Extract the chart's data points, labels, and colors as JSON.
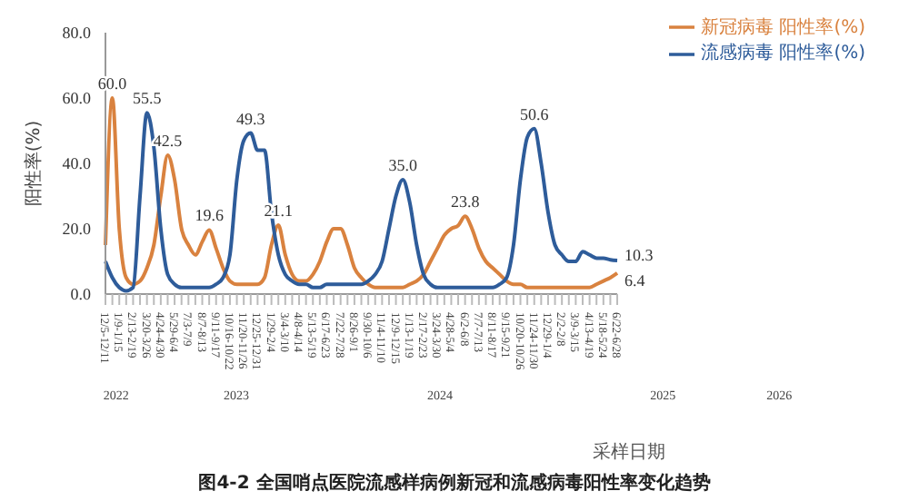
{
  "chart_data": {
    "type": "line",
    "title": "图4-2 全国哨点医院流感样病例新冠和流感病毒阳性率变化趋势",
    "xlabel": "采样日期",
    "ylabel": "阳性率(%)",
    "categories": [
      "12/5-12/11",
      null,
      "1/9-1/15",
      null,
      "2/13-2/19",
      null,
      "3/20-3/26",
      null,
      "4/24-4/30",
      null,
      "5/29-6/4",
      null,
      "7/3-7/9",
      null,
      "8/7-8/13",
      null,
      "9/11-9/17",
      null,
      "10/16-10/22",
      null,
      "11/20-11/26",
      null,
      "12/25-12/31",
      null,
      "1/29-2/4",
      null,
      "3/4-3/10",
      null,
      "4/8-4/14",
      null,
      "5/13-5/19",
      null,
      "6/17-6/23",
      null,
      "7/22-7/28",
      null,
      "8/26-9/1",
      null,
      "9/30-10/6",
      null,
      "11/4-11/10",
      null,
      "12/9-12/15",
      null,
      "1/13-1/19",
      null,
      "2/17-2/23",
      null,
      "3/24-3/30",
      null,
      "4/28-5/4",
      null,
      "6/2-6/8",
      null,
      "7/7-7/13",
      null,
      "8/11-8/17",
      null,
      "9/15-9/21",
      null,
      "10/20-10/26",
      null,
      "11/24-11/30",
      null,
      "12/29-1/4",
      null,
      "2/2-2/8",
      null,
      "3/9-3/15",
      null,
      "4/13-4/19",
      null,
      "5/18-5/24",
      null,
      "6/22-6/28"
    ],
    "series": [
      {
        "name": "新冠病毒 阳性率(%)",
        "color": "#d9823f",
        "values": [
          15,
          60,
          20,
          5,
          3,
          4,
          8,
          15,
          30,
          42.5,
          35,
          20,
          15,
          12,
          16,
          19.6,
          14,
          8,
          4,
          3,
          3,
          3,
          3,
          5,
          15,
          21.1,
          12,
          6,
          4,
          4,
          6,
          10,
          16,
          20,
          20,
          15,
          8,
          5,
          3,
          2,
          2,
          2,
          2,
          2,
          3,
          4,
          6,
          10,
          14,
          18,
          20,
          21,
          23.8,
          20,
          14,
          10,
          8,
          6,
          4,
          3,
          3,
          2,
          2,
          2,
          2,
          2,
          2,
          2,
          2,
          2,
          2,
          3,
          4,
          5,
          6.4
        ],
        "value_labels": [
          null,
          "60.0",
          null,
          null,
          null,
          null,
          null,
          null,
          null,
          "42.5",
          null,
          null,
          null,
          null,
          null,
          "19.6",
          null,
          null,
          null,
          null,
          null,
          null,
          null,
          null,
          null,
          "21.1",
          null,
          null,
          null,
          null,
          null,
          null,
          null,
          null,
          null,
          null,
          null,
          null,
          null,
          null,
          null,
          null,
          null,
          null,
          null,
          null,
          null,
          null,
          null,
          null,
          null,
          null,
          "23.8",
          null,
          null,
          null,
          null,
          null,
          null,
          null,
          null,
          null,
          null,
          null,
          null,
          null,
          null,
          null,
          null,
          null,
          null,
          null,
          null,
          null,
          "6.4"
        ]
      },
      {
        "name": "流感病毒 阳性率(%)",
        "color": "#2e5c9a",
        "values": [
          10,
          5,
          2,
          1,
          2,
          30,
          55.5,
          45,
          20,
          6,
          3,
          2,
          2,
          2,
          2,
          2,
          3,
          5,
          12,
          35,
          47,
          49.3,
          44,
          44,
          25,
          12,
          6,
          4,
          3,
          3,
          2,
          2,
          3,
          3,
          3,
          3,
          3,
          3,
          4,
          6,
          10,
          20,
          30,
          35,
          28,
          15,
          6,
          3,
          2,
          2,
          2,
          2,
          2,
          2,
          2,
          2,
          2,
          3,
          5,
          15,
          35,
          48,
          50.6,
          40,
          25,
          15,
          12,
          10,
          10,
          13,
          12,
          11,
          11,
          10.5,
          10.3
        ],
        "value_labels": [
          null,
          null,
          null,
          null,
          null,
          null,
          "55.5",
          null,
          null,
          null,
          null,
          null,
          null,
          null,
          null,
          null,
          null,
          null,
          null,
          null,
          null,
          "49.3",
          null,
          null,
          null,
          null,
          null,
          null,
          null,
          null,
          null,
          null,
          null,
          null,
          null,
          null,
          null,
          null,
          null,
          null,
          null,
          null,
          null,
          "35.0",
          null,
          null,
          null,
          null,
          null,
          null,
          null,
          null,
          null,
          null,
          null,
          null,
          null,
          null,
          null,
          null,
          null,
          null,
          "50.6",
          null,
          null,
          null,
          null,
          null,
          null,
          null,
          null,
          null,
          null,
          null,
          "10.3"
        ]
      }
    ],
    "ylim": [
      0,
      80
    ],
    "yticks": [
      {
        "value": 0,
        "label": "0.0"
      },
      {
        "value": 20,
        "label": "20.0"
      },
      {
        "value": 40,
        "label": "40.0"
      },
      {
        "value": 60,
        "label": "60.0"
      },
      {
        "value": 80,
        "label": "80.0"
      }
    ],
    "legend": "top right",
    "marker": "none",
    "line_style": "solid",
    "grid": false,
    "annotations": [
      "2022",
      "2023",
      "2024",
      "2025",
      "2026"
    ]
  }
}
